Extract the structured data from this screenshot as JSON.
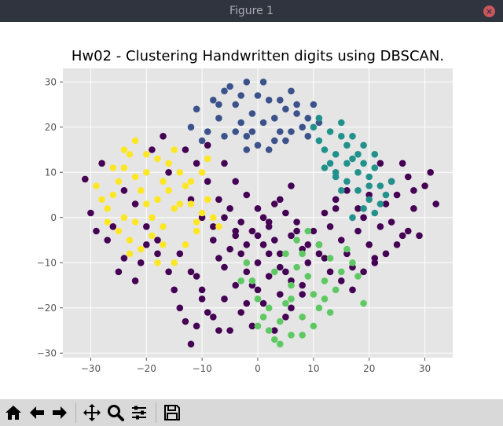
{
  "window": {
    "title": "Figure 1"
  },
  "chart_data": {
    "type": "scatter",
    "title": "Hw02 - Clustering Handwritten digits using DBSCAN.",
    "xlabel": "",
    "ylabel": "",
    "xlim": [
      -35,
      35
    ],
    "ylim": [
      -31,
      33
    ],
    "xticks": [
      -30,
      -20,
      -10,
      0,
      10,
      20,
      30
    ],
    "yticks": [
      -30,
      -20,
      -10,
      0,
      10,
      20,
      30
    ],
    "grid": true,
    "background": "#e5e5e5",
    "series": [
      {
        "color": "#440154",
        "points": [
          [
            -31,
            8.5
          ],
          [
            -30,
            1
          ],
          [
            -29,
            -3
          ],
          [
            -28,
            12
          ],
          [
            -27,
            -5
          ],
          [
            -25,
            -12
          ],
          [
            -24,
            -9
          ],
          [
            -22,
            -14
          ],
          [
            -21,
            -10
          ],
          [
            -20,
            -2
          ],
          [
            -19,
            15
          ],
          [
            -18,
            -5
          ],
          [
            -17,
            18
          ],
          [
            -16,
            -12
          ],
          [
            -15,
            -16
          ],
          [
            -14,
            -20
          ],
          [
            -13,
            -23
          ],
          [
            -12,
            -28
          ],
          [
            -11,
            -13
          ],
          [
            -10,
            -16
          ],
          [
            -9,
            -21
          ],
          [
            -8,
            -5
          ],
          [
            -7,
            -9
          ],
          [
            -6,
            -11
          ],
          [
            -5,
            -7
          ],
          [
            -4,
            -3
          ],
          [
            -3,
            -8
          ],
          [
            -2,
            -12
          ],
          [
            -1,
            -15
          ],
          [
            0,
            -10
          ],
          [
            1,
            -6
          ],
          [
            2,
            -2
          ],
          [
            3,
            -5
          ],
          [
            4,
            -8
          ],
          [
            5,
            -12
          ],
          [
            6,
            -4
          ],
          [
            7,
            -1
          ],
          [
            8,
            -7
          ],
          [
            9,
            -10
          ],
          [
            10,
            -3
          ],
          [
            11,
            -6
          ],
          [
            12,
            -9
          ],
          [
            13,
            -2
          ],
          [
            14,
            2
          ],
          [
            15,
            -5
          ],
          [
            16,
            -8
          ],
          [
            17,
            -11
          ],
          [
            18,
            -3
          ],
          [
            19,
            0
          ],
          [
            20,
            -6
          ],
          [
            21,
            -9
          ],
          [
            22,
            -2
          ],
          [
            23,
            3
          ],
          [
            24,
            -1
          ],
          [
            25,
            5
          ],
          [
            26,
            -4
          ],
          [
            27,
            9
          ],
          [
            28,
            2
          ],
          [
            29,
            -4
          ],
          [
            30,
            7
          ],
          [
            31,
            10
          ],
          [
            32,
            3
          ],
          [
            -9,
            16
          ],
          [
            -6,
            12
          ],
          [
            -4,
            8
          ],
          [
            -2,
            5
          ],
          [
            0,
            2
          ],
          [
            2,
            -1
          ],
          [
            4,
            4
          ],
          [
            6,
            7
          ],
          [
            -12,
            4
          ],
          [
            -10,
            0
          ],
          [
            -8,
            -2
          ],
          [
            -6,
            0
          ],
          [
            -4,
            -4
          ],
          [
            -2,
            -6
          ],
          [
            0,
            -4
          ],
          [
            2,
            -8
          ],
          [
            4,
            -11
          ],
          [
            6,
            -14
          ],
          [
            8,
            -17
          ],
          [
            -14,
            -8
          ],
          [
            -12,
            -12
          ],
          [
            -10,
            -18
          ],
          [
            -8,
            -22
          ],
          [
            -6,
            -18
          ],
          [
            -4,
            -15
          ],
          [
            -2,
            -19
          ],
          [
            0,
            -16
          ],
          [
            2,
            -13
          ],
          [
            4,
            -17
          ],
          [
            6,
            -20
          ],
          [
            -16,
            10
          ],
          [
            -13,
            15
          ],
          [
            -11,
            12
          ],
          [
            -9,
            8
          ],
          [
            -7,
            4
          ],
          [
            -5,
            2
          ],
          [
            -3,
            -1
          ],
          [
            -1,
            -3
          ],
          [
            1,
            0
          ],
          [
            3,
            3
          ],
          [
            5,
            1
          ],
          [
            7,
            -3
          ],
          [
            9,
            -6
          ],
          [
            11,
            -8
          ],
          [
            13,
            -12
          ],
          [
            15,
            -14
          ],
          [
            17,
            -16
          ],
          [
            19,
            -12
          ],
          [
            21,
            -10
          ],
          [
            23,
            -8
          ],
          [
            25,
            -6
          ],
          [
            27,
            -3
          ],
          [
            24,
            8
          ],
          [
            22,
            12
          ],
          [
            26,
            12
          ],
          [
            28,
            6
          ],
          [
            20,
            5
          ],
          [
            18,
            2
          ],
          [
            16,
            6
          ],
          [
            14,
            4
          ],
          [
            12,
            1
          ],
          [
            -22,
            3
          ],
          [
            -26,
            -2
          ],
          [
            -24,
            6
          ],
          [
            -20,
            -6
          ],
          [
            -18,
            -8
          ],
          [
            -7,
            -25
          ],
          [
            -11,
            -24
          ],
          [
            -3,
            -21
          ],
          [
            1,
            -19
          ],
          [
            5,
            -22
          ],
          [
            8,
            -15
          ],
          [
            -5,
            -25
          ],
          [
            -1,
            -24
          ],
          [
            3,
            -25
          ]
        ]
      },
      {
        "color": "#3b528b",
        "points": [
          [
            -11,
            24
          ],
          [
            -12,
            20
          ],
          [
            -9,
            19
          ],
          [
            -7,
            22
          ],
          [
            -6,
            28
          ],
          [
            -5,
            29
          ],
          [
            -4,
            25
          ],
          [
            -3,
            21
          ],
          [
            -2,
            18
          ],
          [
            -1,
            23
          ],
          [
            0,
            27
          ],
          [
            1,
            30
          ],
          [
            2,
            26
          ],
          [
            3,
            22
          ],
          [
            4,
            19
          ],
          [
            5,
            24
          ],
          [
            6,
            28
          ],
          [
            7,
            23
          ],
          [
            8,
            20
          ],
          [
            9,
            18
          ],
          [
            -8,
            26
          ],
          [
            -3,
            27
          ],
          [
            -1,
            19
          ],
          [
            1,
            21
          ],
          [
            3,
            17
          ],
          [
            5,
            17
          ],
          [
            7,
            25
          ],
          [
            9,
            22
          ],
          [
            -10,
            17
          ],
          [
            -6,
            18
          ],
          [
            -2,
            15
          ],
          [
            2,
            15
          ],
          [
            6,
            19
          ],
          [
            10,
            25
          ],
          [
            11,
            21
          ],
          [
            -4,
            19
          ],
          [
            0,
            16
          ],
          [
            4,
            26
          ],
          [
            -7,
            25
          ],
          [
            -2,
            30
          ]
        ]
      },
      {
        "color": "#21918c",
        "points": [
          [
            10,
            20
          ],
          [
            11,
            17
          ],
          [
            12,
            15
          ],
          [
            13,
            12
          ],
          [
            14,
            14
          ],
          [
            15,
            18
          ],
          [
            16,
            16
          ],
          [
            17,
            13
          ],
          [
            18,
            10
          ],
          [
            19,
            12
          ],
          [
            20,
            9
          ],
          [
            21,
            11
          ],
          [
            22,
            7
          ],
          [
            23,
            5
          ],
          [
            24,
            8
          ],
          [
            12,
            11
          ],
          [
            14,
            9
          ],
          [
            16,
            8
          ],
          [
            18,
            6
          ],
          [
            20,
            4
          ],
          [
            15,
            21
          ],
          [
            17,
            18
          ],
          [
            19,
            16
          ],
          [
            21,
            14
          ],
          [
            13,
            19
          ],
          [
            11,
            22
          ],
          [
            14,
            10
          ],
          [
            16,
            12
          ],
          [
            18,
            14
          ],
          [
            20,
            7
          ],
          [
            22,
            3
          ],
          [
            19,
            2
          ],
          [
            17,
            0
          ],
          [
            21,
            1
          ],
          [
            15,
            6
          ]
        ]
      },
      {
        "color": "#5ec962",
        "points": [
          [
            -2,
            -10
          ],
          [
            -1,
            -14
          ],
          [
            0,
            -18
          ],
          [
            1,
            -22
          ],
          [
            2,
            -25
          ],
          [
            3,
            -27
          ],
          [
            4,
            -23
          ],
          [
            5,
            -19
          ],
          [
            6,
            -15
          ],
          [
            7,
            -11
          ],
          [
            8,
            -8
          ],
          [
            9,
            -13
          ],
          [
            10,
            -17
          ],
          [
            11,
            -20
          ],
          [
            12,
            -14
          ],
          [
            13,
            -9
          ],
          [
            14,
            -16
          ],
          [
            15,
            -12
          ],
          [
            16,
            -7
          ],
          [
            17,
            -10
          ],
          [
            18,
            -13
          ],
          [
            19,
            -19
          ],
          [
            6,
            -26
          ],
          [
            8,
            -22
          ],
          [
            10,
            -24
          ],
          [
            4,
            -28
          ],
          [
            2,
            -20
          ],
          [
            0,
            -24
          ],
          [
            -3,
            -14
          ],
          [
            3,
            -12
          ],
          [
            5,
            -8
          ],
          [
            7,
            -5
          ],
          [
            9,
            -3
          ],
          [
            11,
            -6
          ],
          [
            12,
            -18
          ],
          [
            13,
            -21
          ],
          [
            8,
            -26
          ],
          [
            6,
            -18
          ]
        ]
      },
      {
        "color": "#fde725",
        "points": [
          [
            -29,
            7
          ],
          [
            -28,
            4
          ],
          [
            -27,
            2
          ],
          [
            -26,
            5
          ],
          [
            -25,
            8
          ],
          [
            -24,
            11
          ],
          [
            -23,
            14
          ],
          [
            -22,
            9
          ],
          [
            -21,
            6
          ],
          [
            -20,
            3
          ],
          [
            -19,
            0
          ],
          [
            -18,
            4
          ],
          [
            -17,
            8
          ],
          [
            -16,
            12
          ],
          [
            -15,
            15
          ],
          [
            -14,
            10
          ],
          [
            -13,
            7
          ],
          [
            -12,
            3
          ],
          [
            -11,
            -1
          ],
          [
            -10,
            1
          ],
          [
            -9,
            4
          ],
          [
            -8,
            0
          ],
          [
            -7,
            -2
          ],
          [
            -25,
            -3
          ],
          [
            -23,
            -5
          ],
          [
            -21,
            -7
          ],
          [
            -19,
            -4
          ],
          [
            -17,
            -2
          ],
          [
            -24,
            0
          ],
          [
            -22,
            -1
          ],
          [
            -20,
            10
          ],
          [
            -18,
            13
          ],
          [
            -16,
            6
          ],
          [
            -14,
            3
          ],
          [
            -12,
            8
          ],
          [
            -27,
            -1
          ],
          [
            -26,
            11
          ],
          [
            -24,
            15
          ],
          [
            -22,
            17
          ],
          [
            -20,
            14
          ],
          [
            -15,
            -10
          ],
          [
            -13,
            -6
          ],
          [
            -11,
            -3
          ],
          [
            -18,
            -10
          ],
          [
            -23,
            -8
          ],
          [
            -10,
            10
          ],
          [
            -9,
            13
          ],
          [
            -15,
            2
          ],
          [
            -17,
            -6
          ]
        ]
      }
    ]
  },
  "toolbar": {
    "buttons": [
      {
        "name": "home",
        "tooltip": "Reset original view"
      },
      {
        "name": "back",
        "tooltip": "Back"
      },
      {
        "name": "forward",
        "tooltip": "Forward"
      },
      {
        "name": "pan",
        "tooltip": "Pan"
      },
      {
        "name": "zoom",
        "tooltip": "Zoom"
      },
      {
        "name": "configure",
        "tooltip": "Configure subplots"
      },
      {
        "name": "save",
        "tooltip": "Save the figure"
      }
    ]
  }
}
